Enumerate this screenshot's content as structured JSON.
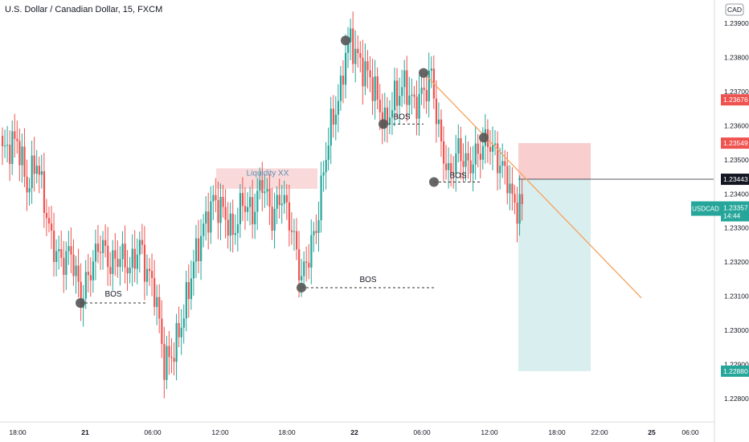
{
  "header": {
    "title": "U.S. Dollar / Canadian Dollar, 15, FXCM",
    "currency": "CAD"
  },
  "colors": {
    "up": "#26a69a",
    "down": "#ef5350",
    "stop_zone": "#f7c6c5",
    "target_zone": "#d5ecec",
    "trendline": "#f5a25d",
    "marker": "#555555",
    "liquidity_zone": "#f8d0d0",
    "axis_text": "#131722"
  },
  "chart_data": {
    "type": "candlestick",
    "symbol": "USDCAD",
    "timeframe": "15",
    "ylim": [
      1.2275,
      1.2395
    ],
    "y_ticks": [
      1.239,
      1.238,
      1.237,
      1.236,
      1.235,
      1.234,
      1.233,
      1.232,
      1.231,
      1.23,
      1.229,
      1.228
    ],
    "y_tick_labels": [
      "1.23900",
      "1.23800",
      "1.23700",
      "1.23600",
      "1.23500",
      "1.23400",
      "1.23300",
      "1.23200",
      "1.23100",
      "1.23000",
      "1.22900",
      "1.22800"
    ],
    "x_tick_labels": [
      "18:00",
      "21",
      "06:00",
      "12:00",
      "18:00",
      "22",
      "06:00",
      "12:00",
      "18:00",
      "22:00",
      "25",
      "06:00"
    ],
    "price_labels": [
      {
        "text": "1.23676",
        "value": 1.23676,
        "kind": "stop"
      },
      {
        "text": "1.23549",
        "value": 1.23549,
        "kind": "stop"
      },
      {
        "text": "1.23443",
        "value": 1.23443,
        "kind": "entry"
      },
      {
        "text": "1.23357",
        "value": 1.23357,
        "kind": "last",
        "symbol": "USDCAD",
        "countdown": "14:44"
      },
      {
        "text": "1.22880",
        "value": 1.2288,
        "kind": "target"
      }
    ],
    "annotations": [
      {
        "text": "BOS",
        "label": "bos-1"
      },
      {
        "text": "Liquidity XX",
        "label": "liquidity"
      },
      {
        "text": "BOS",
        "label": "bos-2"
      },
      {
        "text": "BOS",
        "label": "bos-3"
      },
      {
        "text": "BOS",
        "label": "bos-4"
      }
    ],
    "levels": {
      "bos_1": 1.2308,
      "bos_2": 1.23125,
      "bos_3": 1.23605,
      "bos_4": 1.23435,
      "liquidity_zone": [
        1.23415,
        1.23475
      ],
      "stop_top": 1.23549,
      "entry": 1.23443,
      "target": 1.2288,
      "trendline_start": 1.23755,
      "trendline_end": 1.23095
    },
    "swing_points": [
      1.2308,
      1.23125,
      1.2385,
      1.23605,
      1.23755,
      1.23435,
      1.23565
    ],
    "anchors": [
      [
        0,
        1.2352
      ],
      [
        6,
        1.2356
      ],
      [
        10,
        1.2342
      ],
      [
        14,
        1.235
      ],
      [
        20,
        1.2326
      ],
      [
        24,
        1.232
      ],
      [
        28,
        1.2323
      ],
      [
        32,
        1.2309
      ],
      [
        36,
        1.2318
      ],
      [
        40,
        1.2326
      ],
      [
        44,
        1.2319
      ],
      [
        48,
        1.2322
      ],
      [
        52,
        1.2318
      ],
      [
        56,
        1.2325
      ],
      [
        58,
        1.2319
      ],
      [
        62,
        1.2312
      ],
      [
        64,
        1.2302
      ],
      [
        66,
        1.229
      ],
      [
        70,
        1.2294
      ],
      [
        74,
        1.2305
      ],
      [
        78,
        1.232
      ],
      [
        82,
        1.233
      ],
      [
        86,
        1.2338
      ],
      [
        90,
        1.2335
      ],
      [
        94,
        1.2328
      ],
      [
        98,
        1.2338
      ],
      [
        102,
        1.2334
      ],
      [
        106,
        1.2344
      ],
      [
        110,
        1.2333
      ],
      [
        114,
        1.234
      ],
      [
        118,
        1.233
      ],
      [
        122,
        1.2315
      ],
      [
        126,
        1.2325
      ],
      [
        128,
        1.233
      ],
      [
        132,
        1.2352
      ],
      [
        134,
        1.236
      ],
      [
        138,
        1.237
      ],
      [
        140,
        1.2382
      ],
      [
        142,
        1.2385
      ],
      [
        146,
        1.2378
      ],
      [
        150,
        1.2374
      ],
      [
        152,
        1.237
      ],
      [
        156,
        1.236
      ],
      [
        160,
        1.2368
      ],
      [
        164,
        1.2372
      ],
      [
        168,
        1.2366
      ],
      [
        172,
        1.237
      ],
      [
        175,
        1.2375
      ],
      [
        178,
        1.2358
      ],
      [
        182,
        1.2345
      ],
      [
        186,
        1.2353
      ],
      [
        190,
        1.2348
      ],
      [
        194,
        1.2352
      ],
      [
        198,
        1.2356
      ],
      [
        202,
        1.235
      ],
      [
        206,
        1.2345
      ],
      [
        208,
        1.2338
      ],
      [
        210,
        1.2336
      ],
      [
        212,
        1.2337
      ]
    ]
  }
}
